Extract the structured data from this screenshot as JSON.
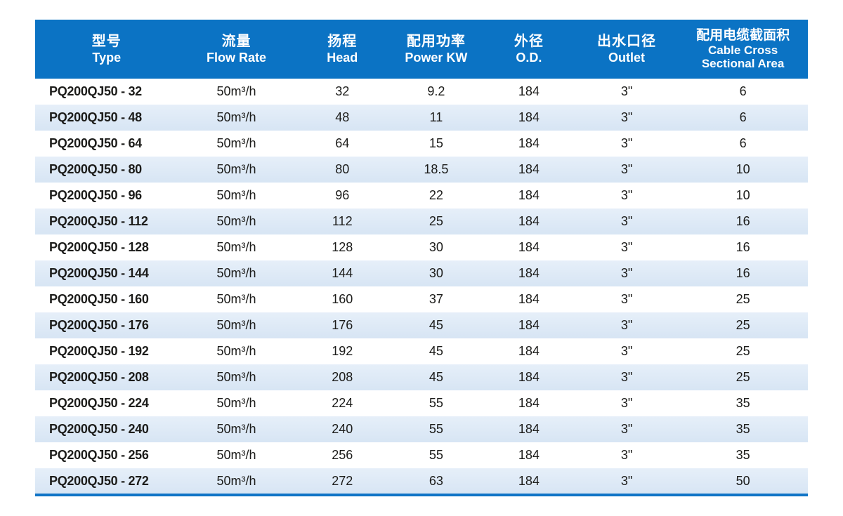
{
  "colors": {
    "header_bg": "#0b73c4",
    "header_text": "#ffffff",
    "stripe_bg_top": "#e6eff9",
    "stripe_bg": "#d7e5f4",
    "text": "#1c1c1a",
    "bottom_rule": "#1074c6"
  },
  "table": {
    "columns": [
      {
        "id": "type",
        "zh": "型号",
        "en": "Type"
      },
      {
        "id": "flow",
        "zh": "流量",
        "en": "Flow Rate"
      },
      {
        "id": "head",
        "zh": "扬程",
        "en": "Head"
      },
      {
        "id": "power",
        "zh": "配用功率",
        "en": "Power KW"
      },
      {
        "id": "od",
        "zh": "外径",
        "en": "O.D."
      },
      {
        "id": "outlet",
        "zh": "出水口径",
        "en": "Outlet"
      },
      {
        "id": "cable",
        "zh": "配用电缆截面积",
        "en": "Cable Cross",
        "en2": "Sectional Area"
      }
    ],
    "rows": [
      [
        "PQ200QJ50 - 32",
        "50m³/h",
        "32",
        "9.2",
        "184",
        "3\"",
        "6"
      ],
      [
        "PQ200QJ50 - 48",
        "50m³/h",
        "48",
        "11",
        "184",
        "3\"",
        "6"
      ],
      [
        "PQ200QJ50 - 64",
        "50m³/h",
        "64",
        "15",
        "184",
        "3\"",
        "6"
      ],
      [
        "PQ200QJ50 - 80",
        "50m³/h",
        "80",
        "18.5",
        "184",
        "3\"",
        "10"
      ],
      [
        "PQ200QJ50 - 96",
        "50m³/h",
        "96",
        "22",
        "184",
        "3\"",
        "10"
      ],
      [
        "PQ200QJ50 - 112",
        "50m³/h",
        "112",
        "25",
        "184",
        "3\"",
        "16"
      ],
      [
        "PQ200QJ50 - 128",
        "50m³/h",
        "128",
        "30",
        "184",
        "3\"",
        "16"
      ],
      [
        "PQ200QJ50 - 144",
        "50m³/h",
        "144",
        "30",
        "184",
        "3\"",
        "16"
      ],
      [
        "PQ200QJ50 - 160",
        "50m³/h",
        "160",
        "37",
        "184",
        "3\"",
        "25"
      ],
      [
        "PQ200QJ50 - 176",
        "50m³/h",
        "176",
        "45",
        "184",
        "3\"",
        "25"
      ],
      [
        "PQ200QJ50 - 192",
        "50m³/h",
        "192",
        "45",
        "184",
        "3\"",
        "25"
      ],
      [
        "PQ200QJ50 - 208",
        "50m³/h",
        "208",
        "45",
        "184",
        "3\"",
        "25"
      ],
      [
        "PQ200QJ50 - 224",
        "50m³/h",
        "224",
        "55",
        "184",
        "3\"",
        "35"
      ],
      [
        "PQ200QJ50 - 240",
        "50m³/h",
        "240",
        "55",
        "184",
        "3\"",
        "35"
      ],
      [
        "PQ200QJ50 - 256",
        "50m³/h",
        "256",
        "55",
        "184",
        "3\"",
        "35"
      ],
      [
        "PQ200QJ50 - 272",
        "50m³/h",
        "272",
        "63",
        "184",
        "3\"",
        "50"
      ]
    ]
  }
}
